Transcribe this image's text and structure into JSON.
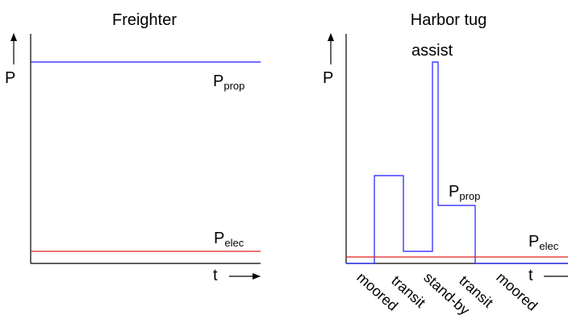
{
  "left_panel": {
    "title": "Freighter",
    "y_axis_label": "P",
    "x_axis_label": "t",
    "prop_label": {
      "main": "P",
      "sub": "prop"
    },
    "elec_label": {
      "main": "P",
      "sub": "elec"
    }
  },
  "right_panel": {
    "title": "Harbor tug",
    "y_axis_label": "P",
    "x_axis_label": "t",
    "assist_label": "assist",
    "prop_label": {
      "main": "P",
      "sub": "prop"
    },
    "elec_label": {
      "main": "P",
      "sub": "elec"
    },
    "phases": [
      "moored",
      "transit",
      "stand-by",
      "transit",
      "moored"
    ]
  },
  "colors": {
    "prop": "#1a1aff",
    "elec": "#e02020",
    "axis": "#000000"
  }
}
